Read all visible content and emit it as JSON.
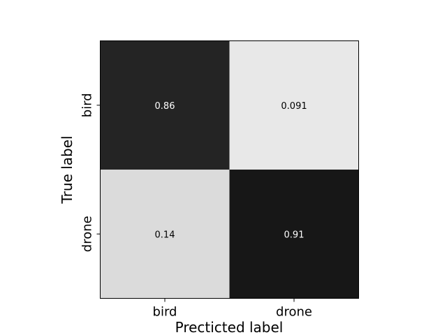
{
  "chart_data": {
    "type": "heatmap",
    "title": "",
    "xlabel": "Precticted label",
    "ylabel": "True label",
    "x_categories": [
      "bird",
      "drone"
    ],
    "y_categories": [
      "bird",
      "drone"
    ],
    "values": [
      [
        0.86,
        0.091
      ],
      [
        0.14,
        0.91
      ]
    ],
    "value_labels": [
      [
        "0.86",
        "0.091"
      ],
      [
        "0.14",
        "0.91"
      ]
    ],
    "colormap": "greys",
    "vmin": 0.0,
    "vmax": 1.0,
    "grid": false
  }
}
